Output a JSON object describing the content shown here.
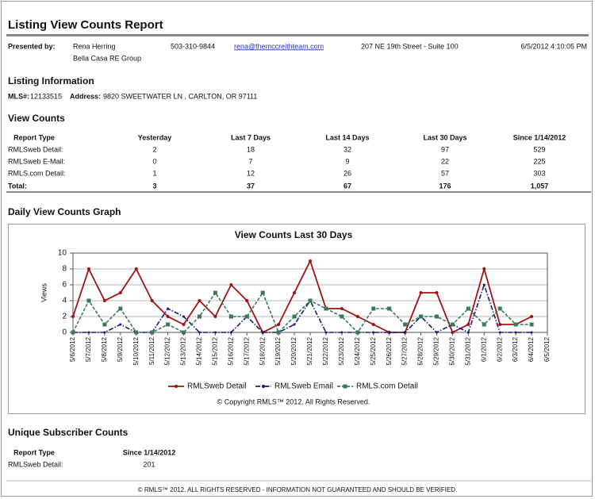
{
  "header": {
    "title": "Listing View Counts Report"
  },
  "presenter": {
    "label": "Presented by:",
    "name": "Rena Herring",
    "company": "Bella Casa RE Group",
    "phone": "503-310-9844",
    "email": "rena@themccreithteam.com",
    "address": "207 NE 19th Street - Suite 100",
    "timestamp": "6/5/2012 4:10:05 PM"
  },
  "listing": {
    "heading": "Listing Information",
    "mls_label": "MLS#:",
    "mls": "12133515",
    "address_label": "Address:",
    "address": "9820 SWEETWATER LN , CARLTON, OR 97111"
  },
  "view_counts": {
    "heading": "View Counts",
    "columns": [
      "Report Type",
      "Yesterday",
      "Last 7 Days",
      "Last 14 Days",
      "Last 30 Days",
      "Since 1/14/2012"
    ],
    "rows": [
      [
        "RMLSweb Detail:",
        "2",
        "18",
        "32",
        "97",
        "529"
      ],
      [
        "RMLSweb E-Mail:",
        "0",
        "7",
        "9",
        "22",
        "225"
      ],
      [
        "RMLS.com Detail:",
        "1",
        "12",
        "26",
        "57",
        "303"
      ]
    ],
    "total": [
      "Total:",
      "3",
      "37",
      "67",
      "176",
      "1,057"
    ]
  },
  "graph": {
    "heading": "Daily View Counts Graph"
  },
  "chart_data": {
    "type": "line",
    "title": "View Counts Last 30 Days",
    "ylabel": "Views",
    "categories": [
      "5/6/2012",
      "5/7/2012",
      "5/8/2012",
      "5/9/2012",
      "5/10/2012",
      "5/11/2012",
      "5/12/2012",
      "5/13/2012",
      "5/14/2012",
      "5/15/2012",
      "5/16/2012",
      "5/17/2012",
      "5/18/2012",
      "5/19/2012",
      "5/20/2012",
      "5/21/2012",
      "5/22/2012",
      "5/23/2012",
      "5/24/2012",
      "5/25/2012",
      "5/26/2012",
      "5/27/2012",
      "5/28/2012",
      "5/29/2012",
      "5/30/2012",
      "5/31/2012",
      "6/1/2012",
      "6/2/2012",
      "6/3/2012",
      "6/4/2012",
      "6/5/2012"
    ],
    "series": [
      {
        "name": "RMLSweb Detail",
        "color": "#a01313",
        "values": [
          2,
          8,
          4,
          5,
          8,
          4,
          2,
          1,
          4,
          2,
          6,
          4,
          0,
          1,
          5,
          9,
          3,
          3,
          2,
          1,
          0,
          0,
          5,
          5,
          0,
          1,
          8,
          1,
          1,
          2,
          null
        ]
      },
      {
        "name": "RMLSweb Email",
        "color": "#1a1a7a",
        "values": [
          0,
          0,
          0,
          1,
          0,
          0,
          3,
          2,
          0,
          0,
          0,
          2,
          0,
          0,
          1,
          4,
          0,
          0,
          0,
          0,
          0,
          0,
          2,
          0,
          1,
          0,
          6,
          0,
          0,
          0,
          null
        ]
      },
      {
        "name": "RMLS.com Detail",
        "color": "#3a7a5a",
        "values": [
          0,
          4,
          1,
          3,
          0,
          0,
          1,
          0,
          2,
          5,
          2,
          2,
          5,
          0,
          2,
          4,
          3,
          2,
          0,
          3,
          3,
          1,
          2,
          2,
          1,
          3,
          1,
          3,
          1,
          1,
          null
        ]
      }
    ],
    "ylim": [
      0,
      10
    ],
    "yticks": [
      0,
      2,
      4,
      6,
      8,
      10
    ],
    "grid": true,
    "legend": "bottom",
    "copyright": "© Copyright RMLS™ 2012.  All Rights Reserved."
  },
  "subscribers": {
    "heading": "Unique Subscriber Counts",
    "columns": [
      "Report Type",
      "Since 1/14/2012"
    ],
    "rows": [
      [
        "RMLSweb Detail:",
        "201"
      ]
    ]
  },
  "footer": "© RMLS™ 2012. ALL RIGHTS RESERVED - INFORMATION NOT GUARANTEED AND SHOULD BE VERIFIED."
}
